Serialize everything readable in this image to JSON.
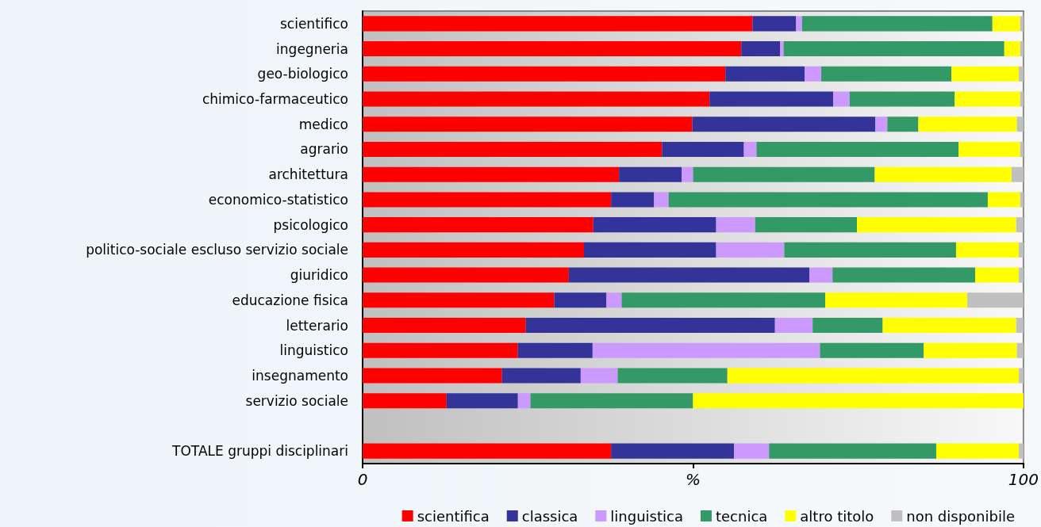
{
  "chart_data": {
    "type": "bar",
    "orientation": "horizontal",
    "stacked": true,
    "categories": [
      "scientifico",
      "ingegneria",
      "geo-biologico",
      "chimico-farmaceutico",
      "medico",
      "agrario",
      "architettura",
      "economico-statistico",
      "psicologico",
      "politico-sociale escluso servizio sociale",
      "giuridico",
      "educazione fisica",
      "letterario",
      "linguistico",
      "insegnamento",
      "servizio sociale",
      null,
      "TOTALE gruppi disciplinari"
    ],
    "series": [
      {
        "name": "scientifica",
        "color": "#ff0000",
        "values": [
          59.0,
          57.3,
          54.9,
          52.5,
          49.9,
          45.3,
          38.8,
          37.6,
          34.9,
          33.5,
          31.2,
          29.0,
          24.7,
          23.5,
          21.1,
          12.7,
          null,
          37.6
        ]
      },
      {
        "name": "classica",
        "color": "#333399",
        "values": [
          6.6,
          5.9,
          12.0,
          18.7,
          27.7,
          12.4,
          9.5,
          6.5,
          18.6,
          20.0,
          36.4,
          7.9,
          37.7,
          11.3,
          11.9,
          10.8,
          null,
          18.6
        ]
      },
      {
        "name": "linguistica",
        "color": "#cc99ff",
        "values": [
          0.9,
          0.5,
          2.5,
          2.5,
          1.8,
          1.9,
          1.7,
          2.2,
          5.9,
          10.3,
          3.5,
          2.3,
          5.7,
          34.4,
          5.6,
          1.9,
          null,
          5.3
        ]
      },
      {
        "name": "tecnica",
        "color": "#339966",
        "values": [
          28.8,
          33.4,
          19.7,
          15.9,
          4.7,
          30.6,
          27.5,
          48.3,
          15.4,
          26.0,
          21.6,
          30.8,
          10.6,
          15.7,
          16.6,
          24.6,
          null,
          25.3
        ]
      },
      {
        "name": "altro titolo",
        "color": "#ffff00",
        "values": [
          4.2,
          2.4,
          10.2,
          9.9,
          14.9,
          9.3,
          20.7,
          4.9,
          24.1,
          9.5,
          6.6,
          21.5,
          20.2,
          14.1,
          44.1,
          50.0,
          null,
          12.5
        ]
      },
      {
        "name": "non disponibile",
        "color": "#c0c0c0",
        "values": [
          0.5,
          0.5,
          0.7,
          0.5,
          1.0,
          0.5,
          1.8,
          0.5,
          1.1,
          0.7,
          0.7,
          8.5,
          1.1,
          1.0,
          0.7,
          0.0,
          null,
          0.7
        ]
      }
    ],
    "xlim": [
      0,
      100
    ],
    "xticks": [
      0,
      {
        "value": 50,
        "label": "%"
      },
      100
    ],
    "grid": false,
    "legend": "bottom right"
  }
}
